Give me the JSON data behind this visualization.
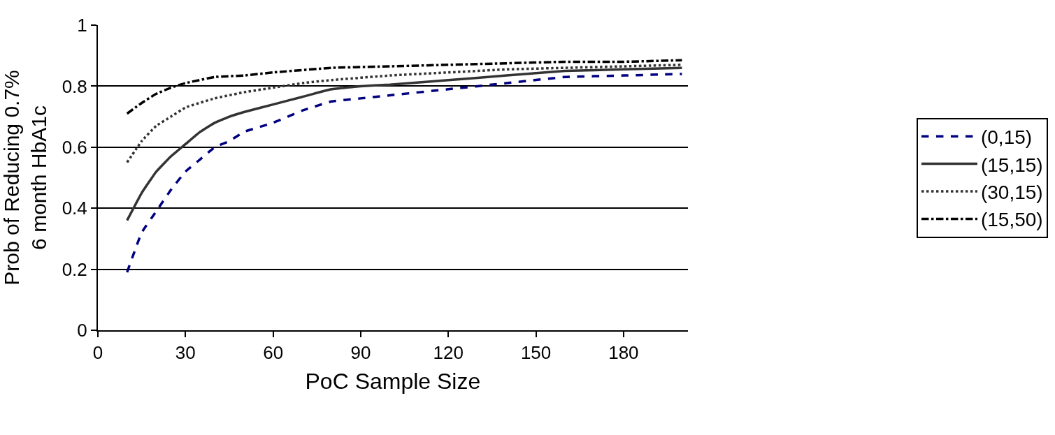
{
  "chart_data": {
    "type": "line",
    "xlabel": "PoC Sample Size",
    "ylabel": "Prob of Reducing 0.7%\n6 month HbA1c",
    "xlim": [
      0,
      202
    ],
    "xticks": [
      0,
      30,
      60,
      90,
      120,
      150,
      180
    ],
    "ylim": [
      0,
      1
    ],
    "yticks": [
      0,
      0.2,
      0.4,
      0.6,
      0.8,
      1
    ],
    "grid": "y",
    "legend": "right",
    "marker": "none",
    "series": [
      {
        "name": "(0,15)",
        "color": "#000080",
        "line_style": "dashed",
        "x": [
          10,
          15,
          20,
          25,
          30,
          35,
          40,
          45,
          50,
          60,
          70,
          80,
          90,
          100,
          120,
          140,
          160,
          180,
          200
        ],
        "values": [
          0.19,
          0.32,
          0.39,
          0.46,
          0.52,
          0.56,
          0.6,
          0.62,
          0.65,
          0.68,
          0.72,
          0.75,
          0.76,
          0.77,
          0.79,
          0.81,
          0.83,
          0.835,
          0.84
        ]
      },
      {
        "name": "(15,15)",
        "color": "#333333",
        "line_style": "solid",
        "x": [
          10,
          15,
          20,
          25,
          30,
          35,
          40,
          45,
          50,
          60,
          70,
          80,
          90,
          100,
          120,
          140,
          160,
          180,
          200
        ],
        "values": [
          0.36,
          0.45,
          0.52,
          0.57,
          0.61,
          0.65,
          0.68,
          0.7,
          0.715,
          0.74,
          0.765,
          0.79,
          0.8,
          0.805,
          0.82,
          0.835,
          0.85,
          0.855,
          0.86
        ]
      },
      {
        "name": "(30,15)",
        "color": "#333333",
        "line_style": "dotted",
        "x": [
          10,
          15,
          20,
          25,
          30,
          40,
          50,
          60,
          70,
          80,
          100,
          120,
          140,
          160,
          180,
          200
        ],
        "values": [
          0.55,
          0.62,
          0.67,
          0.7,
          0.73,
          0.76,
          0.78,
          0.795,
          0.81,
          0.82,
          0.835,
          0.845,
          0.855,
          0.86,
          0.865,
          0.87
        ]
      },
      {
        "name": "(15,50)",
        "color": "#000000",
        "line_style": "dashdot",
        "x": [
          10,
          15,
          20,
          25,
          30,
          40,
          50,
          60,
          80,
          100,
          120,
          140,
          160,
          180,
          200
        ],
        "values": [
          0.71,
          0.745,
          0.775,
          0.795,
          0.81,
          0.83,
          0.835,
          0.845,
          0.86,
          0.865,
          0.87,
          0.875,
          0.88,
          0.88,
          0.885
        ]
      }
    ]
  }
}
